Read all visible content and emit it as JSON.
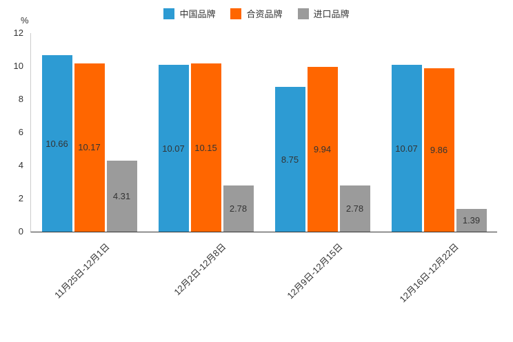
{
  "chart_data": {
    "type": "bar",
    "title": "",
    "unit_label": "%",
    "categories": [
      "11月25日-12月1日",
      "12月2日-12月8日",
      "12月9日-12月15日",
      "12月16日-12月22日"
    ],
    "series": [
      {
        "name": "中国品牌",
        "color": "#2d9bd3",
        "values": [
          10.66,
          10.07,
          8.75,
          10.07
        ]
      },
      {
        "name": "合资品牌",
        "color": "#ff6600",
        "values": [
          10.17,
          10.15,
          9.94,
          9.86
        ]
      },
      {
        "name": "进口品牌",
        "color": "#9b9b9b",
        "values": [
          4.31,
          2.78,
          2.78,
          1.39
        ]
      }
    ],
    "ylim": [
      0,
      12
    ],
    "y_ticks": [
      0,
      2,
      4,
      6,
      8,
      10,
      12
    ],
    "grid": false,
    "legend_position": "top",
    "value_labels": "inside-center"
  }
}
